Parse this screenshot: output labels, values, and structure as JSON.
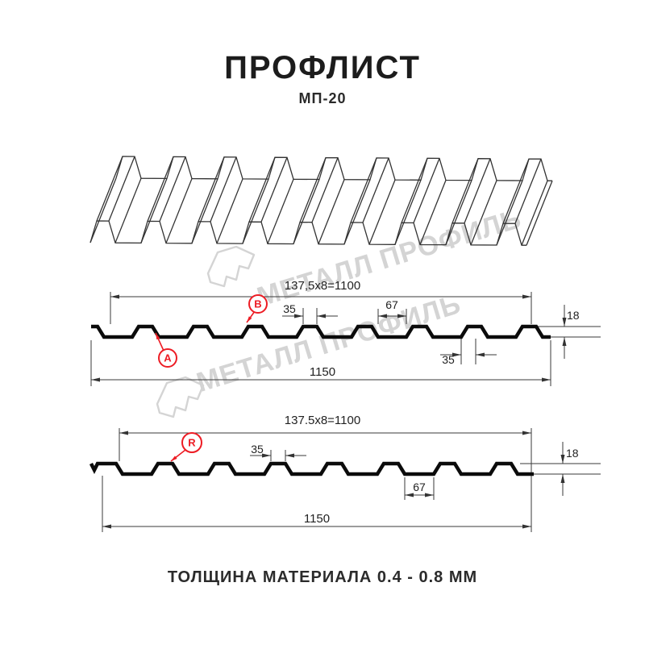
{
  "title": "ПРОФЛИСТ",
  "subtitle": "МП-20",
  "footer": "ТОЛЩИНА МАТЕРИАЛА 0.4 - 0.8 ММ",
  "watermark": {
    "text": "МЕТАЛЛ ПРОФИЛЬ"
  },
  "colors": {
    "accent_red": "#ed1c24",
    "line_dark": "#0b0b0b",
    "line_thin": "#3a3a3a",
    "watermark_gray": "#d4d4d4"
  },
  "section_top": {
    "width_dim": "137,5x8=1100",
    "total_dim": "1150",
    "labels": {
      "a": "A",
      "b": "B"
    },
    "dims": {
      "crest_top": "35",
      "valley": "67",
      "height": "18",
      "crest_base": "35"
    }
  },
  "section_bottom": {
    "width_dim": "137.5x8=1100",
    "total_dim": "1150",
    "labels": {
      "r": "R"
    },
    "dims": {
      "crest_top": "35",
      "valley": "67",
      "height": "18"
    }
  }
}
